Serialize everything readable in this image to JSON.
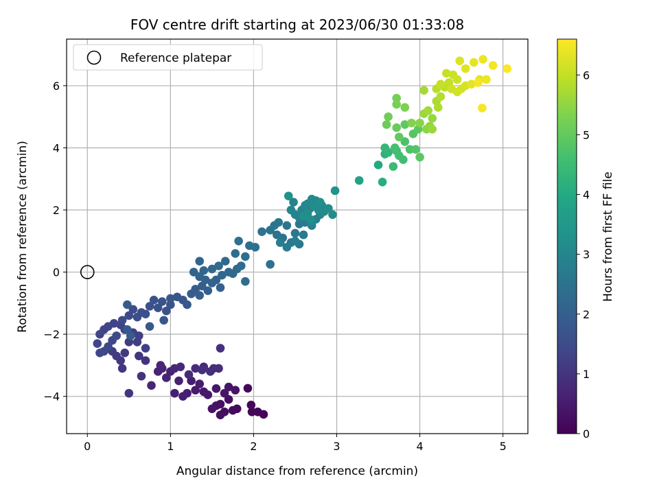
{
  "chart_data": {
    "type": "scatter",
    "title": "FOV centre drift starting at 2023/06/30 01:33:08",
    "xlabel": "Angular distance from reference (arcmin)",
    "ylabel": "Rotation from reference (arcmin)",
    "xlim": [
      -0.25,
      5.3
    ],
    "ylim": [
      -5.2,
      7.5
    ],
    "xticks": [
      0,
      1,
      2,
      3,
      4,
      5
    ],
    "xtick_labels": [
      "0",
      "1",
      "2",
      "3",
      "4",
      "5"
    ],
    "yticks": [
      -4,
      -2,
      0,
      2,
      4,
      6
    ],
    "ytick_labels": [
      "−4",
      "−2",
      "0",
      "2",
      "4",
      "6"
    ],
    "grid": true,
    "legend": {
      "placement": "top-left",
      "entries": [
        {
          "label": "Reference platepar",
          "marker": "open-circle"
        }
      ]
    },
    "reference_point": {
      "x": 0,
      "y": 0
    },
    "colorbar": {
      "label": "Hours from first FF file",
      "range": [
        0,
        6.6
      ],
      "ticks": [
        0,
        1,
        2,
        3,
        4,
        5,
        6
      ],
      "tick_labels": [
        "0",
        "1",
        "2",
        "3",
        "4",
        "5",
        "6"
      ],
      "colormap": "viridis"
    },
    "series": [
      {
        "points": [
          [
            2.12,
            -4.58,
            0.05
          ],
          [
            2.05,
            -4.5,
            0.08
          ],
          [
            1.98,
            -4.5,
            0.1
          ],
          [
            1.97,
            -4.28,
            0.12
          ],
          [
            1.93,
            -3.74,
            0.15
          ],
          [
            1.8,
            -4.4,
            0.18
          ],
          [
            1.75,
            -4.45,
            0.2
          ],
          [
            1.65,
            -4.5,
            0.22
          ],
          [
            1.6,
            -4.6,
            0.25
          ],
          [
            1.7,
            -4.1,
            0.28
          ],
          [
            1.6,
            -4.25,
            0.3
          ],
          [
            1.55,
            -4.3,
            0.32
          ],
          [
            1.5,
            -4.4,
            0.34
          ],
          [
            1.78,
            -3.8,
            0.36
          ],
          [
            1.7,
            -3.7,
            0.38
          ],
          [
            1.65,
            -3.9,
            0.4
          ],
          [
            1.55,
            -3.75,
            0.42
          ],
          [
            1.45,
            -3.95,
            0.44
          ],
          [
            1.4,
            -3.85,
            0.46
          ],
          [
            1.3,
            -3.8,
            0.48
          ],
          [
            1.35,
            -3.6,
            0.5
          ],
          [
            1.25,
            -3.5,
            0.52
          ],
          [
            1.2,
            -3.9,
            0.54
          ],
          [
            1.15,
            -4.0,
            0.56
          ],
          [
            1.05,
            -3.9,
            0.58
          ],
          [
            1.1,
            -3.5,
            0.6
          ],
          [
            1.0,
            -3.2,
            0.62
          ],
          [
            0.95,
            -3.4,
            0.64
          ],
          [
            0.85,
            -3.2,
            0.66
          ],
          [
            0.9,
            -3.1,
            0.68
          ],
          [
            0.77,
            -3.65,
            0.7
          ],
          [
            0.88,
            -3.0,
            0.72
          ],
          [
            1.05,
            -3.1,
            0.74
          ],
          [
            1.12,
            -3.05,
            0.76
          ],
          [
            1.22,
            -3.3,
            0.78
          ],
          [
            1.3,
            -3.1,
            0.8
          ],
          [
            1.4,
            -3.05,
            0.82
          ],
          [
            1.52,
            -3.1,
            0.84
          ],
          [
            1.58,
            -3.1,
            0.86
          ],
          [
            1.48,
            -3.2,
            0.88
          ],
          [
            1.38,
            -3.15,
            0.9
          ],
          [
            1.6,
            -2.45,
            0.92
          ],
          [
            0.65,
            -3.35,
            0.95
          ],
          [
            0.5,
            -3.9,
            0.98
          ],
          [
            0.7,
            -2.85,
            1.0
          ],
          [
            0.62,
            -2.7,
            1.02
          ],
          [
            0.42,
            -3.1,
            1.05
          ],
          [
            0.4,
            -2.85,
            1.08
          ],
          [
            0.35,
            -2.7,
            1.1
          ],
          [
            0.3,
            -2.55,
            1.12
          ],
          [
            0.45,
            -2.6,
            1.14
          ],
          [
            0.5,
            -2.25,
            1.16
          ],
          [
            0.6,
            -2.25,
            1.18
          ],
          [
            0.7,
            -2.45,
            1.2
          ],
          [
            0.62,
            -2.05,
            1.22
          ],
          [
            0.55,
            -1.95,
            1.24
          ],
          [
            0.45,
            -1.85,
            1.26
          ],
          [
            0.4,
            -1.7,
            1.28
          ],
          [
            0.32,
            -1.65,
            1.3
          ],
          [
            0.25,
            -1.75,
            1.32
          ],
          [
            0.2,
            -1.85,
            1.34
          ],
          [
            0.15,
            -2.0,
            1.36
          ],
          [
            0.12,
            -2.3,
            1.38
          ],
          [
            0.15,
            -2.6,
            1.4
          ],
          [
            0.2,
            -2.55,
            1.42
          ],
          [
            0.25,
            -2.4,
            1.44
          ],
          [
            0.3,
            -2.2,
            1.46
          ],
          [
            0.35,
            -2.05,
            1.48
          ],
          [
            0.42,
            -1.55,
            1.5
          ],
          [
            0.5,
            -1.4,
            1.52
          ],
          [
            0.55,
            -1.2,
            1.54
          ],
          [
            0.65,
            -1.3,
            1.56
          ],
          [
            0.6,
            -1.45,
            1.58
          ],
          [
            0.7,
            -1.35,
            1.6
          ],
          [
            0.75,
            -1.1,
            1.62
          ],
          [
            0.85,
            -1.15,
            1.64
          ],
          [
            0.9,
            -0.95,
            1.66
          ],
          [
            0.8,
            -0.9,
            1.68
          ],
          [
            0.95,
            -1.25,
            1.7
          ],
          [
            1.0,
            -1.05,
            1.72
          ],
          [
            1.08,
            -0.8,
            1.74
          ],
          [
            1.15,
            -0.9,
            1.76
          ],
          [
            1.2,
            -1.05,
            1.78
          ],
          [
            0.92,
            -1.55,
            1.8
          ],
          [
            1.0,
            -0.85,
            1.82
          ],
          [
            0.75,
            -1.75,
            1.84
          ],
          [
            0.48,
            -1.85,
            1.86
          ],
          [
            0.52,
            -2.05,
            1.88
          ],
          [
            0.48,
            -1.05,
            1.9
          ],
          [
            1.25,
            -0.7,
            1.92
          ],
          [
            1.3,
            -0.55,
            1.94
          ],
          [
            1.38,
            -0.45,
            1.96
          ],
          [
            1.45,
            -0.6,
            1.98
          ],
          [
            1.35,
            -0.75,
            2.0
          ],
          [
            1.5,
            -0.35,
            2.02
          ],
          [
            1.55,
            -0.25,
            2.04
          ],
          [
            1.6,
            -0.5,
            2.06
          ],
          [
            1.42,
            -0.25,
            2.08
          ],
          [
            1.35,
            -0.15,
            2.1
          ],
          [
            1.28,
            0.0,
            2.12
          ],
          [
            1.35,
            0.35,
            2.14
          ],
          [
            1.4,
            0.05,
            2.16
          ],
          [
            1.5,
            0.1,
            2.18
          ],
          [
            1.62,
            -0.1,
            2.2
          ],
          [
            1.7,
            0.0,
            2.22
          ],
          [
            1.66,
            0.35,
            2.24
          ],
          [
            1.58,
            0.2,
            2.26
          ],
          [
            1.75,
            -0.05,
            2.28
          ],
          [
            1.8,
            0.1,
            2.3
          ],
          [
            1.9,
            -0.3,
            2.32
          ],
          [
            1.85,
            0.2,
            2.34
          ],
          [
            1.78,
            0.6,
            2.36
          ],
          [
            1.9,
            0.5,
            2.38
          ],
          [
            1.95,
            0.85,
            2.4
          ],
          [
            1.82,
            1.0,
            2.42
          ],
          [
            2.02,
            0.8,
            2.44
          ],
          [
            2.2,
            0.25,
            2.46
          ],
          [
            2.1,
            1.3,
            2.48
          ],
          [
            2.2,
            1.35,
            2.5
          ],
          [
            2.28,
            1.2,
            2.52
          ],
          [
            2.35,
            1.1,
            2.54
          ],
          [
            2.25,
            1.5,
            2.56
          ],
          [
            2.3,
            1.6,
            2.58
          ],
          [
            2.4,
            1.5,
            2.6
          ],
          [
            2.45,
            0.95,
            2.62
          ],
          [
            2.5,
            1.25,
            2.64
          ],
          [
            2.55,
            1.55,
            2.66
          ],
          [
            2.6,
            1.2,
            2.68
          ],
          [
            2.55,
            0.9,
            2.7
          ],
          [
            2.62,
            1.6,
            2.72
          ],
          [
            2.4,
            0.8,
            2.74
          ],
          [
            2.32,
            0.95,
            2.76
          ],
          [
            2.5,
            1.0,
            2.78
          ],
          [
            2.7,
            1.5,
            2.8
          ],
          [
            2.75,
            1.7,
            2.82
          ],
          [
            2.6,
            1.9,
            2.84
          ],
          [
            2.68,
            2.05,
            2.86
          ],
          [
            2.55,
            1.75,
            2.88
          ],
          [
            2.48,
            2.25,
            2.9
          ],
          [
            2.58,
            2.0,
            2.92
          ],
          [
            2.5,
            1.85,
            2.94
          ],
          [
            2.8,
            1.85,
            2.96
          ],
          [
            2.45,
            2.0,
            2.98
          ],
          [
            2.65,
            2.2,
            3.0
          ],
          [
            2.7,
            1.6,
            3.02
          ],
          [
            2.82,
            2.15,
            3.04
          ],
          [
            2.75,
            2.3,
            3.06
          ],
          [
            2.62,
            2.15,
            3.08
          ],
          [
            2.85,
            1.95,
            3.1
          ],
          [
            2.7,
            2.35,
            3.12
          ],
          [
            2.95,
            1.85,
            3.14
          ],
          [
            2.65,
            1.9,
            3.16
          ],
          [
            2.78,
            2.0,
            3.18
          ],
          [
            2.9,
            2.05,
            3.2
          ],
          [
            2.72,
            2.15,
            3.22
          ],
          [
            2.6,
            1.8,
            3.24
          ],
          [
            2.8,
            2.25,
            3.26
          ],
          [
            2.68,
            1.7,
            3.28
          ],
          [
            2.42,
            2.45,
            3.3
          ],
          [
            2.98,
            2.62,
            3.35
          ],
          [
            3.27,
            2.95,
            3.8
          ],
          [
            3.5,
            3.45,
            4.0
          ],
          [
            3.55,
            2.9,
            4.1
          ],
          [
            3.58,
            3.8,
            4.2
          ],
          [
            3.62,
            3.85,
            4.3
          ],
          [
            3.58,
            4.0,
            4.35
          ],
          [
            3.68,
            3.4,
            4.45
          ],
          [
            3.72,
            3.9,
            4.5
          ],
          [
            3.8,
            3.62,
            4.55
          ],
          [
            3.75,
            3.75,
            4.6
          ],
          [
            3.7,
            4.0,
            4.65
          ],
          [
            3.82,
            4.2,
            4.7
          ],
          [
            3.88,
            3.95,
            4.75
          ],
          [
            3.95,
            3.95,
            4.8
          ],
          [
            3.92,
            4.45,
            4.85
          ],
          [
            3.98,
            4.6,
            4.9
          ],
          [
            4.0,
            3.7,
            4.92
          ],
          [
            3.82,
            4.75,
            4.95
          ],
          [
            3.75,
            4.35,
            5.0
          ],
          [
            3.72,
            4.65,
            5.05
          ],
          [
            3.6,
            4.75,
            5.1
          ],
          [
            3.62,
            5.0,
            5.15
          ],
          [
            3.72,
            5.6,
            5.2
          ],
          [
            3.72,
            5.4,
            5.25
          ],
          [
            3.82,
            5.3,
            5.3
          ],
          [
            3.9,
            4.8,
            5.35
          ],
          [
            4.0,
            4.8,
            5.4
          ],
          [
            4.08,
            4.6,
            5.45
          ],
          [
            4.12,
            4.7,
            5.5
          ],
          [
            4.15,
            4.95,
            5.55
          ],
          [
            4.05,
            5.1,
            5.6
          ],
          [
            4.15,
            4.6,
            5.62
          ],
          [
            4.1,
            5.2,
            5.65
          ],
          [
            4.05,
            5.85,
            5.7
          ],
          [
            4.2,
            5.5,
            5.75
          ],
          [
            4.22,
            5.3,
            5.8
          ],
          [
            4.25,
            5.65,
            5.85
          ],
          [
            4.2,
            5.9,
            5.9
          ],
          [
            4.3,
            5.95,
            5.95
          ],
          [
            4.35,
            6.1,
            6.0
          ],
          [
            4.25,
            6.05,
            6.02
          ],
          [
            4.32,
            6.4,
            6.05
          ],
          [
            4.4,
            6.35,
            6.08
          ],
          [
            4.45,
            6.2,
            6.1
          ],
          [
            4.38,
            5.9,
            6.12
          ],
          [
            4.45,
            5.8,
            6.15
          ],
          [
            4.5,
            5.9,
            6.18
          ],
          [
            4.55,
            6.0,
            6.2
          ],
          [
            4.48,
            6.8,
            6.25
          ],
          [
            4.55,
            6.55,
            6.3
          ],
          [
            4.62,
            6.05,
            6.32
          ],
          [
            4.65,
            6.75,
            6.35
          ],
          [
            4.72,
            6.2,
            6.38
          ],
          [
            4.76,
            6.85,
            6.42
          ],
          [
            4.8,
            6.2,
            6.45
          ],
          [
            4.88,
            6.65,
            6.5
          ],
          [
            4.7,
            6.1,
            6.52
          ],
          [
            4.75,
            5.28,
            6.55
          ],
          [
            5.05,
            6.55,
            6.58
          ]
        ]
      }
    ]
  }
}
